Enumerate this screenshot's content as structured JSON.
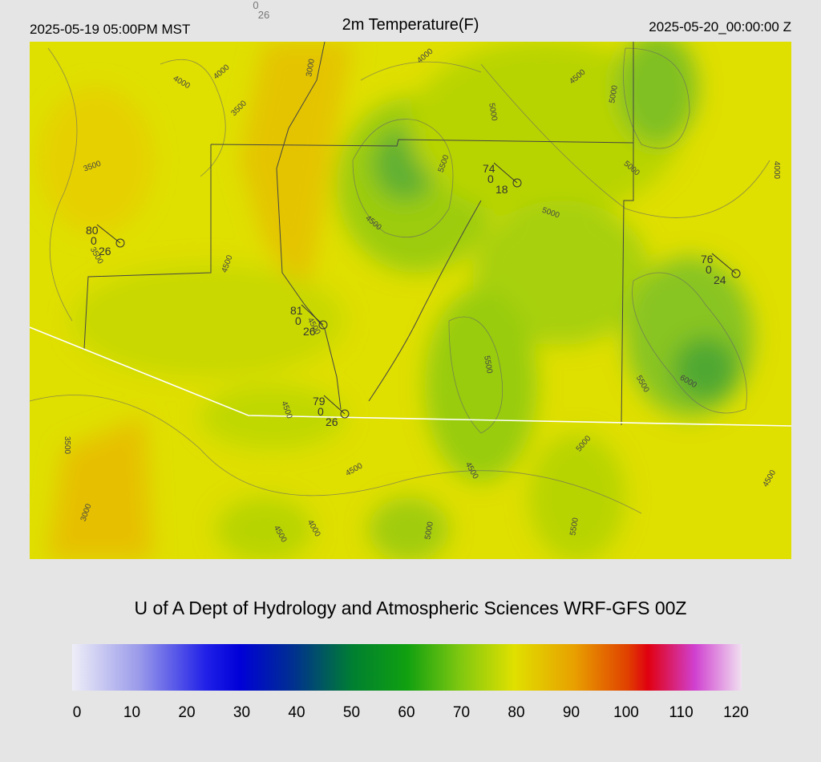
{
  "header": {
    "valid_local": "2025-05-19 05:00PM MST",
    "title": "2m Temperature(F)",
    "valid_utc": "2025-05-20_00:00:00 Z"
  },
  "top_station": {
    "mid": "0",
    "dew": "26"
  },
  "stations": [
    {
      "temp": "80",
      "mid": "0",
      "dew": "26"
    },
    {
      "temp": "74",
      "mid": "0",
      "dew": "18"
    },
    {
      "temp": "76",
      "mid": "0",
      "dew": "24"
    },
    {
      "temp": "81",
      "mid": "0",
      "dew": "26"
    },
    {
      "temp": "79",
      "mid": "0",
      "dew": "26"
    }
  ],
  "contour_labels": [
    "4000",
    "4000",
    "3500",
    "3000",
    "4000",
    "4500",
    "5000",
    "5000",
    "3500",
    "5500",
    "4500",
    "5000",
    "5000",
    "4000",
    "4500",
    "4500",
    "5500",
    "5500",
    "6000",
    "3500",
    "4500",
    "4500",
    "5000",
    "4500",
    "3000",
    "4500",
    "4000",
    "5000",
    "5500",
    "4500",
    "3500"
  ],
  "credit": "U of A Dept of Hydrology and Atmospheric Sciences WRF-GFS 00Z",
  "colorbar": {
    "ticks": [
      0,
      10,
      20,
      30,
      40,
      50,
      60,
      70,
      80,
      90,
      100,
      110,
      120
    ]
  }
}
